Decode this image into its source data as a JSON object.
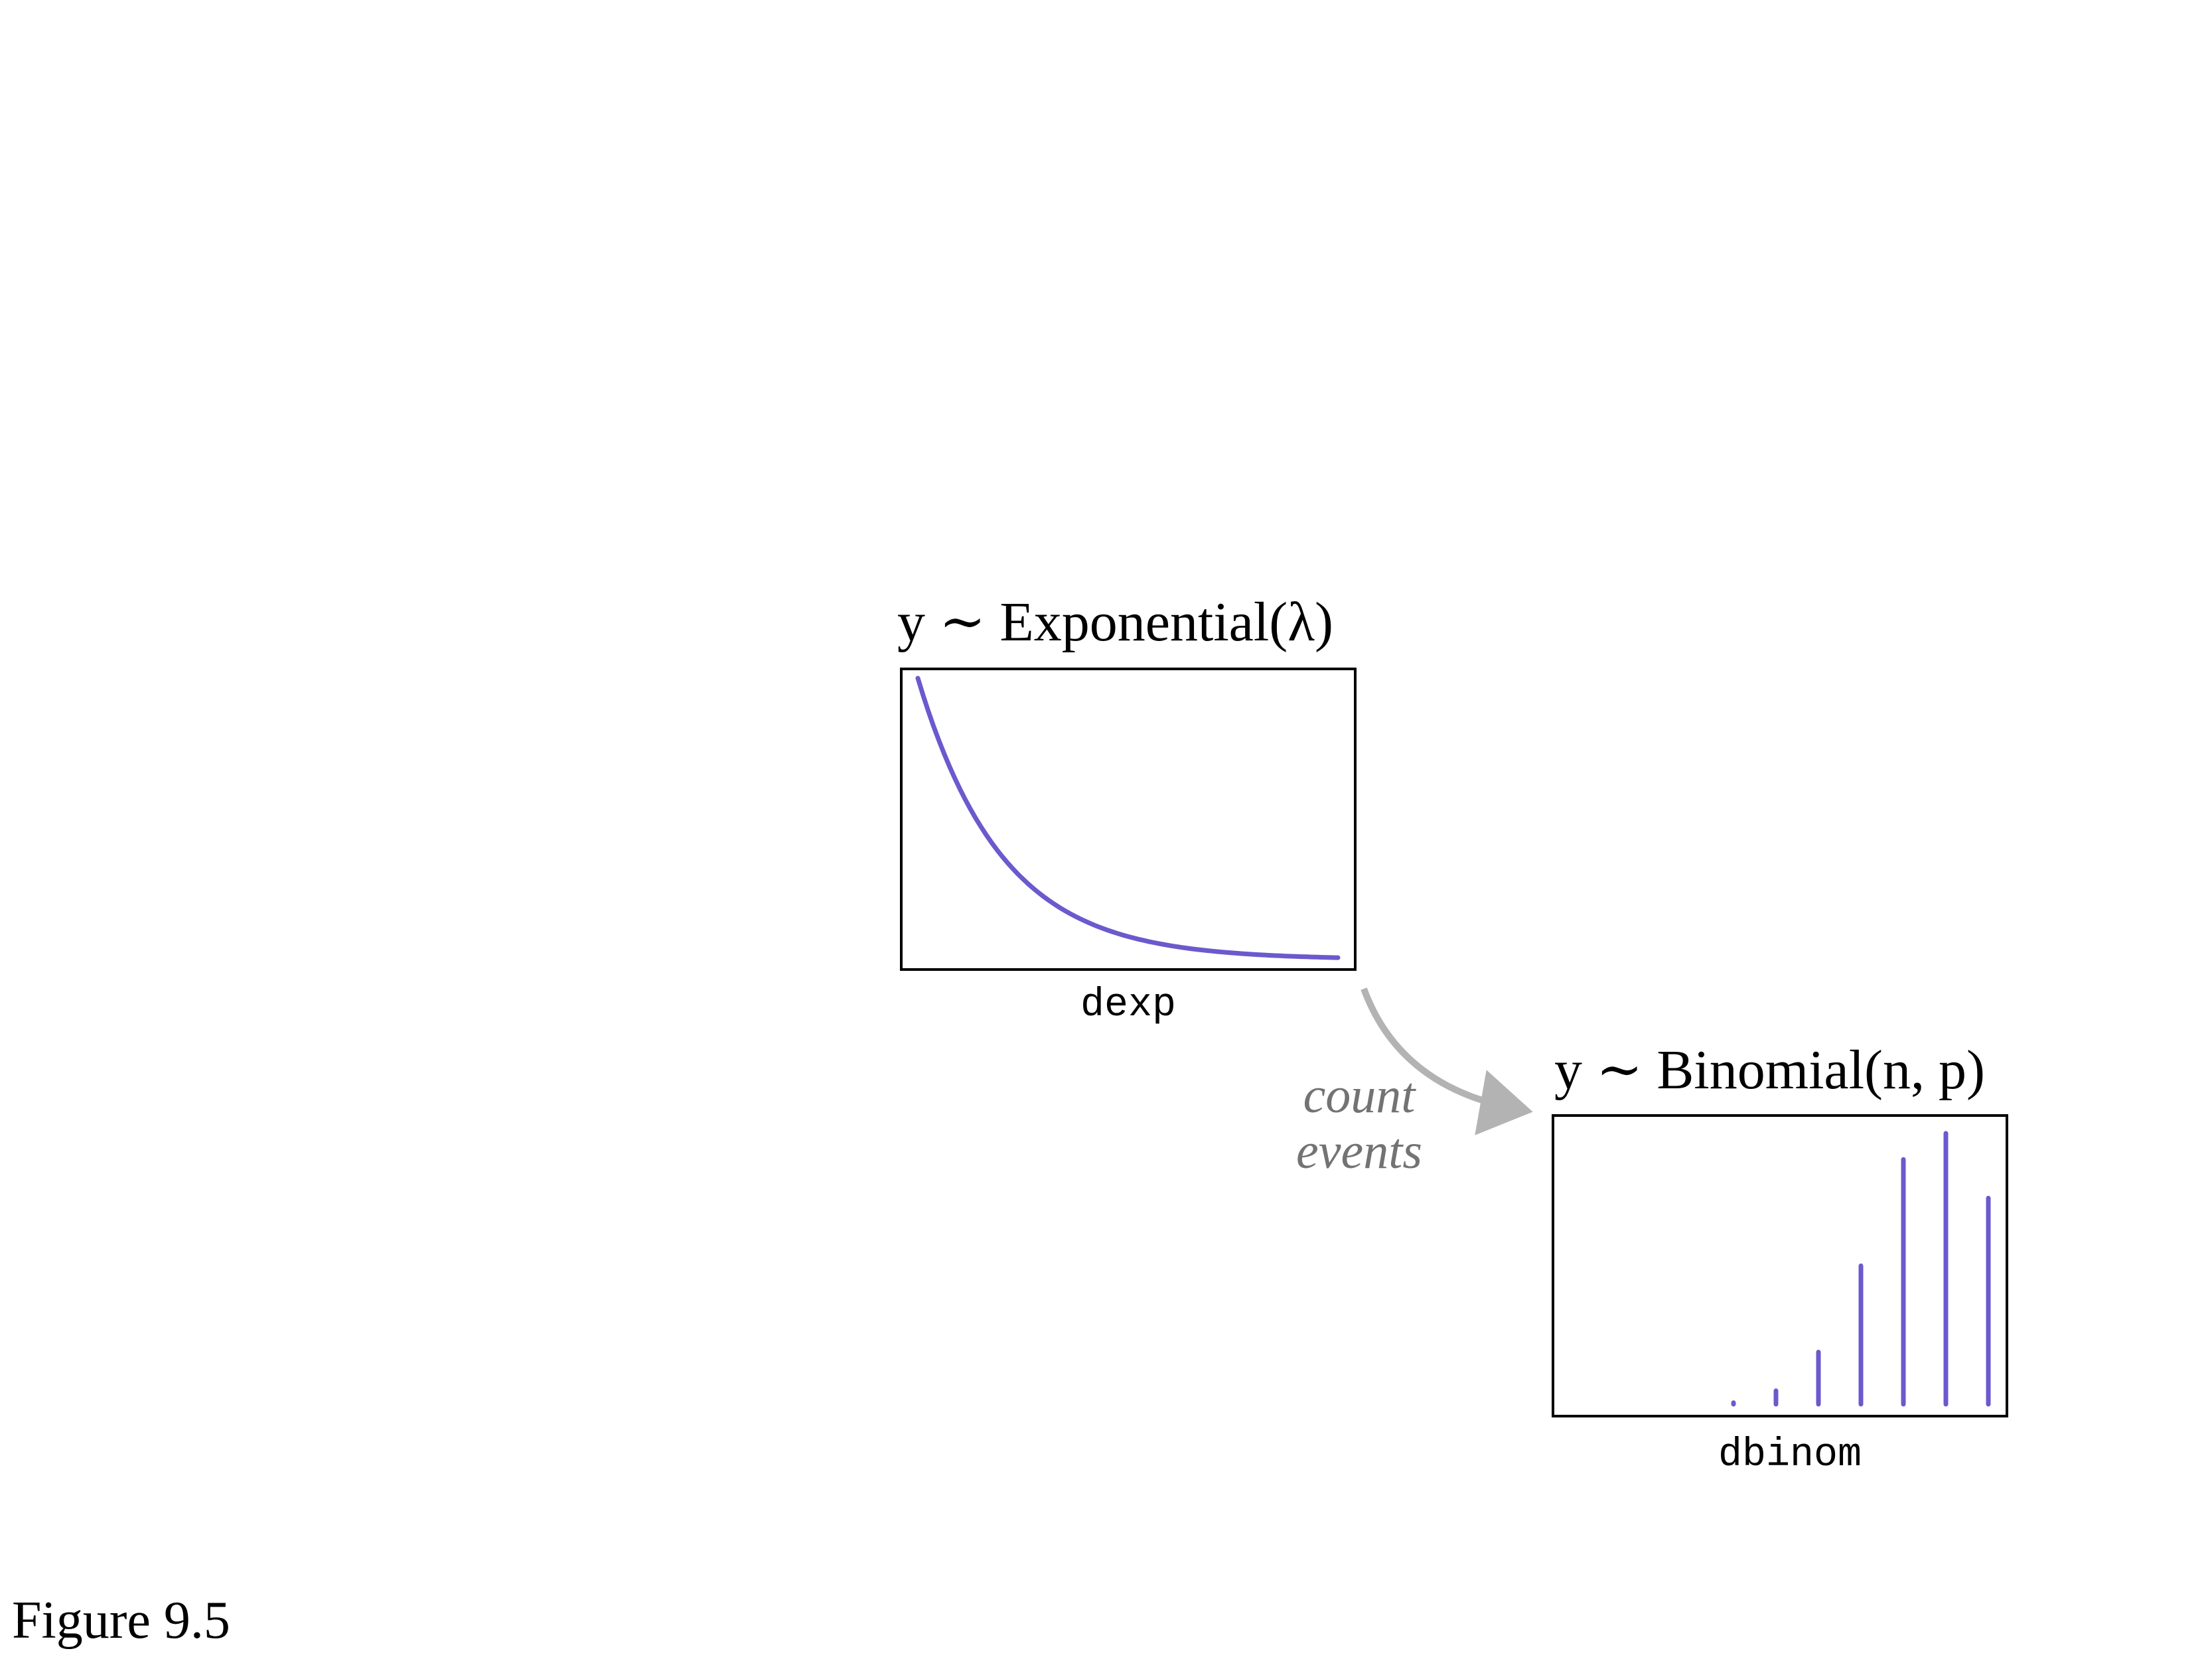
{
  "caption": "Figure 9.5",
  "arrow_label": {
    "line1": "count",
    "line2": "events"
  },
  "panels": {
    "exponential": {
      "title": "y ∼ Exponential(λ)",
      "function_label": "dexp"
    },
    "binomial": {
      "title": "y ∼ Binomial(n, p)",
      "function_label": "dbinom"
    }
  },
  "colors": {
    "curve": "#6a5acd",
    "arrow": "#b3b3b3",
    "annotation_text": "#737373",
    "frame": "#000000"
  },
  "chart_data": [
    {
      "type": "line",
      "name": "dexp",
      "x": [
        0,
        0.5,
        1,
        1.5,
        2,
        2.5,
        3,
        3.5,
        4,
        4.5,
        5
      ],
      "y": [
        1.0,
        0.6065,
        0.3679,
        0.2231,
        0.1353,
        0.0821,
        0.0498,
        0.0302,
        0.0183,
        0.0111,
        0.0067
      ],
      "xlim": [
        0,
        5
      ],
      "ylim": [
        0,
        1.0
      ],
      "grid": false
    },
    {
      "type": "bar",
      "name": "dbinom",
      "categories": [
        0,
        1,
        2,
        3,
        4,
        5,
        6
      ],
      "values": [
        0.002,
        0.018,
        0.07,
        0.186,
        0.329,
        0.364,
        0.277
      ],
      "ylim": [
        0,
        0.38
      ],
      "grid": false
    }
  ]
}
